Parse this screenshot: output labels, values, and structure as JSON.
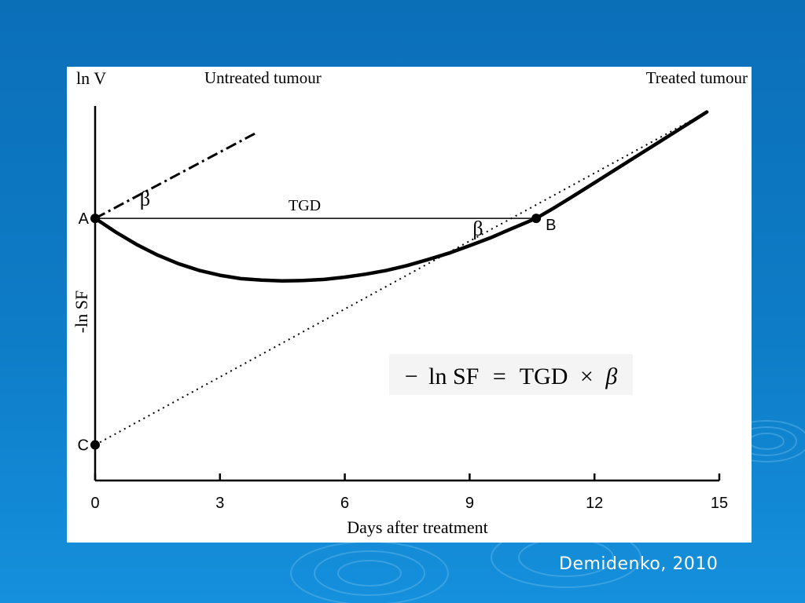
{
  "slide": {
    "credit": "Demidenko, 2010",
    "background_color": "#0e7cc7",
    "text_color": "#ffffff"
  },
  "chart_data": {
    "type": "line",
    "title": "",
    "xlabel": "Days after treatment",
    "ylabel_top": "ln V",
    "ylabel_side": "-ln SF",
    "x_ticks": [
      0,
      3,
      6,
      9,
      12,
      15
    ],
    "xlim": [
      0,
      15
    ],
    "ylim": [
      0,
      10
    ],
    "grid": false,
    "series": [
      {
        "name": "Untreated tumour",
        "style": "dash-dot",
        "x": [
          0,
          3.9
        ],
        "y": [
          7.0,
          9.3
        ]
      },
      {
        "name": "Treated tumour",
        "style": "solid",
        "x": [
          0,
          0.5,
          1,
          1.5,
          2,
          2.5,
          3,
          3.5,
          4,
          4.5,
          5,
          5.5,
          6,
          6.5,
          7,
          7.5,
          8,
          8.5,
          9,
          9.5,
          10,
          10.6,
          11,
          11.5,
          12,
          12.5,
          13,
          13.5,
          14,
          14.5,
          14.7
        ],
        "y": [
          7.0,
          6.63,
          6.3,
          6.02,
          5.79,
          5.61,
          5.48,
          5.39,
          5.35,
          5.33,
          5.34,
          5.37,
          5.43,
          5.51,
          5.61,
          5.74,
          5.9,
          6.07,
          6.27,
          6.48,
          6.72,
          7.0,
          7.26,
          7.6,
          7.95,
          8.3,
          8.65,
          9.0,
          9.35,
          9.7,
          9.84
        ]
      },
      {
        "name": "Regrowth asymptote",
        "style": "dotted",
        "x": [
          0,
          14.7
        ],
        "y": [
          0.95,
          9.84
        ]
      }
    ],
    "points": [
      {
        "label": "A",
        "x": 0,
        "y": 7.0
      },
      {
        "label": "B",
        "x": 10.6,
        "y": 7.0
      },
      {
        "label": "C",
        "x": 0,
        "y": 0.95
      }
    ],
    "segments": [
      {
        "label": "TGD",
        "x": [
          0,
          10.6
        ],
        "y": [
          7.0,
          7.0
        ]
      }
    ],
    "annotations": [
      {
        "text": "β",
        "x": 1.2,
        "y": 7.35
      },
      {
        "text": "β",
        "x": 9.2,
        "y": 6.55
      }
    ],
    "equation": {
      "minus": "−",
      "lhs": "ln SF",
      "equals": "=",
      "tgd": "TGD",
      "times": "×",
      "beta": "β"
    }
  }
}
